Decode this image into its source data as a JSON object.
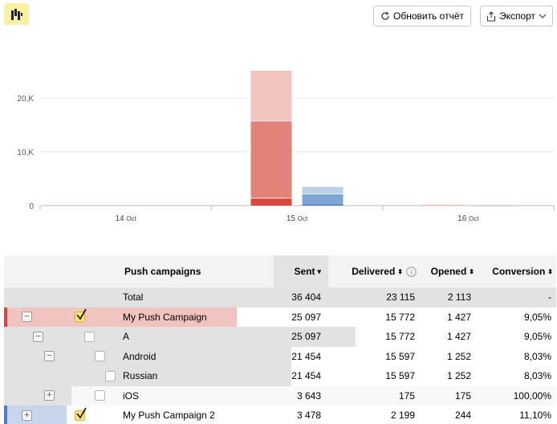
{
  "toolbar": {
    "view_icon": "bar-chart-icon",
    "refresh_label": "Обновить отчёт",
    "refresh_icon": "refresh-icon",
    "export_label": "Экспорт",
    "export_icon": "share-icon"
  },
  "chart_data": {
    "type": "bar",
    "stacked": true,
    "grid": true,
    "ylim": [
      0,
      30000
    ],
    "y_ticks": [
      "0",
      "10,K",
      "20,K"
    ],
    "categories": [
      "14 Oct",
      "15 Oct",
      "16 Oct"
    ],
    "groups": [
      {
        "name": "My Push Campaign",
        "colors": [
          "#d8473d",
          "#e2837a",
          "#f0c4bf"
        ],
        "segments": [
          [
            0,
            0,
            0
          ],
          [
            1427,
            14345,
            9325
          ],
          [
            0,
            0,
            180
          ]
        ]
      },
      {
        "name": "My Push Campaign 2",
        "colors": [
          "#4a7cc1",
          "#7fa4d6",
          "#bdd0ea"
        ],
        "segments": [
          [
            0,
            0,
            0
          ],
          [
            244,
            1955,
            1279
          ],
          [
            0,
            0,
            30
          ]
        ]
      }
    ]
  },
  "table": {
    "columns": [
      "Push campaigns",
      "Sent",
      "Delivered",
      "Opened",
      "Conversion"
    ],
    "sort_arrow": "▾",
    "sort_both": "⬍",
    "info_icon": "info-icon",
    "rows": [
      {
        "name": "Total",
        "sent": "36 404",
        "delivered": "23 115",
        "opened": "2 113",
        "conversion": "-"
      },
      {
        "name": "My Push Campaign",
        "sent": "25 097",
        "delivered": "15 772",
        "opened": "1 427",
        "conversion": "9,05%",
        "toggle": "−",
        "checked": true,
        "stripe": "#d8473d"
      },
      {
        "name": "A",
        "sent": "25 097",
        "delivered": "15 772",
        "opened": "1 427",
        "conversion": "9,05%",
        "toggle": "−"
      },
      {
        "name": "Android",
        "sent": "21 454",
        "delivered": "15 597",
        "opened": "1 252",
        "conversion": "8,03%",
        "toggle": "−"
      },
      {
        "name": "Russian",
        "sent": "21 454",
        "delivered": "15 597",
        "opened": "1 252",
        "conversion": "8,03%"
      },
      {
        "name": "iOS",
        "sent": "3 643",
        "delivered": "175",
        "opened": "175",
        "conversion": "100,00%",
        "toggle": "+"
      },
      {
        "name": "My Push Campaign 2",
        "sent": "3 478",
        "delivered": "2 199",
        "opened": "244",
        "conversion": "11,10%",
        "toggle": "+",
        "checked": true,
        "stripe": "#4a7cc1"
      }
    ]
  }
}
